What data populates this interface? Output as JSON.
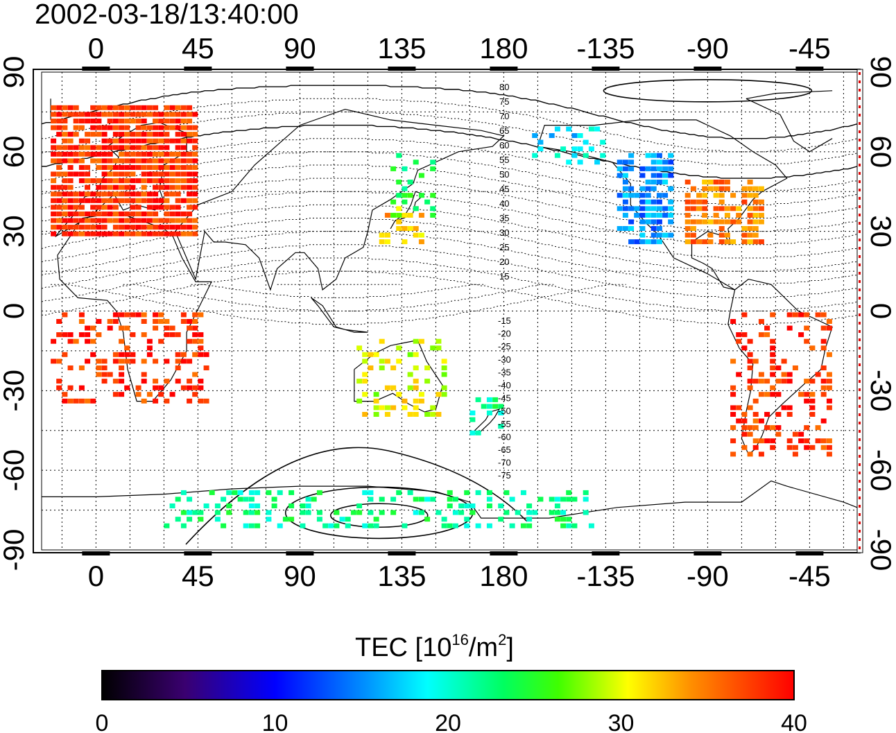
{
  "figure": {
    "timestamp": "2002-03-18/13:40:00"
  },
  "map": {
    "top_lon_ticks": [
      "0",
      "45",
      "90",
      "135",
      "180",
      "-135",
      "-90",
      "-45"
    ],
    "bottom_lon_ticks": [
      "0",
      "45",
      "90",
      "135",
      "180",
      "-135",
      "-90",
      "-45"
    ],
    "left_lat_ticks": [
      "90",
      "60",
      "30",
      "0",
      "-30",
      "-60",
      "-90"
    ],
    "right_lat_ticks": [
      "90",
      "60",
      "30",
      "0",
      "-30",
      "-60",
      "-90"
    ],
    "lon_tick_values": [
      0,
      45,
      90,
      135,
      180,
      -135,
      -90,
      -45
    ],
    "lat_tick_values": [
      90,
      60,
      30,
      0,
      -30,
      -60,
      -90
    ],
    "lon_range": [
      -24,
      336
    ],
    "lat_range": [
      -90,
      90
    ],
    "magnetic_contour_labels_north": [
      "80",
      "75",
      "70",
      "65",
      "60",
      "55",
      "50",
      "45",
      "40",
      "35",
      "30",
      "25",
      "20",
      "15"
    ],
    "magnetic_contour_labels_south": [
      "-15",
      "-20",
      "-25",
      "-30",
      "-35",
      "-40",
      "-45",
      "-50",
      "-55",
      "-60",
      "-65",
      "-70",
      "-75"
    ]
  },
  "colorbar": {
    "title_prefix": "TEC  [10",
    "title_exp": "16",
    "title_mid": "/m",
    "title_sq": "2",
    "title_suffix": "]",
    "ticks": [
      "0",
      "10",
      "20",
      "30",
      "40"
    ],
    "min": 0,
    "max": 40
  },
  "tec_regions": [
    {
      "name": "europe",
      "lon": [
        -20,
        45
      ],
      "lat": [
        28,
        76
      ],
      "tec": 38
    },
    {
      "name": "north-america-west",
      "lon": [
        -130,
        -105
      ],
      "lat": [
        25,
        60
      ],
      "tec": 15
    },
    {
      "name": "north-america-east",
      "lon": [
        -100,
        -65
      ],
      "lat": [
        25,
        50
      ],
      "tec": 35
    },
    {
      "name": "japan",
      "lon": [
        125,
        145
      ],
      "lat": [
        25,
        40
      ],
      "tec": 33
    },
    {
      "name": "japan-north",
      "lon": [
        130,
        150
      ],
      "lat": [
        35,
        60
      ],
      "tec": 24
    },
    {
      "name": "alaska",
      "lon": [
        -170,
        -135
      ],
      "lat": [
        55,
        70
      ],
      "tec": 18
    },
    {
      "name": "australia",
      "lon": [
        115,
        155
      ],
      "lat": [
        -40,
        -10
      ],
      "tec": 30
    },
    {
      "name": "new-zealand",
      "lon": [
        165,
        180
      ],
      "lat": [
        -47,
        -34
      ],
      "tec": 22
    },
    {
      "name": "south-america",
      "lon": [
        -80,
        -35
      ],
      "lat": [
        -55,
        0
      ],
      "tec": 38
    },
    {
      "name": "africa",
      "lon": [
        -20,
        50
      ],
      "lat": [
        -35,
        0
      ],
      "tec": 38
    },
    {
      "name": "antarctic-rim",
      "lon": [
        30,
        220
      ],
      "lat": [
        -82,
        -68
      ],
      "tec": 22
    }
  ]
}
